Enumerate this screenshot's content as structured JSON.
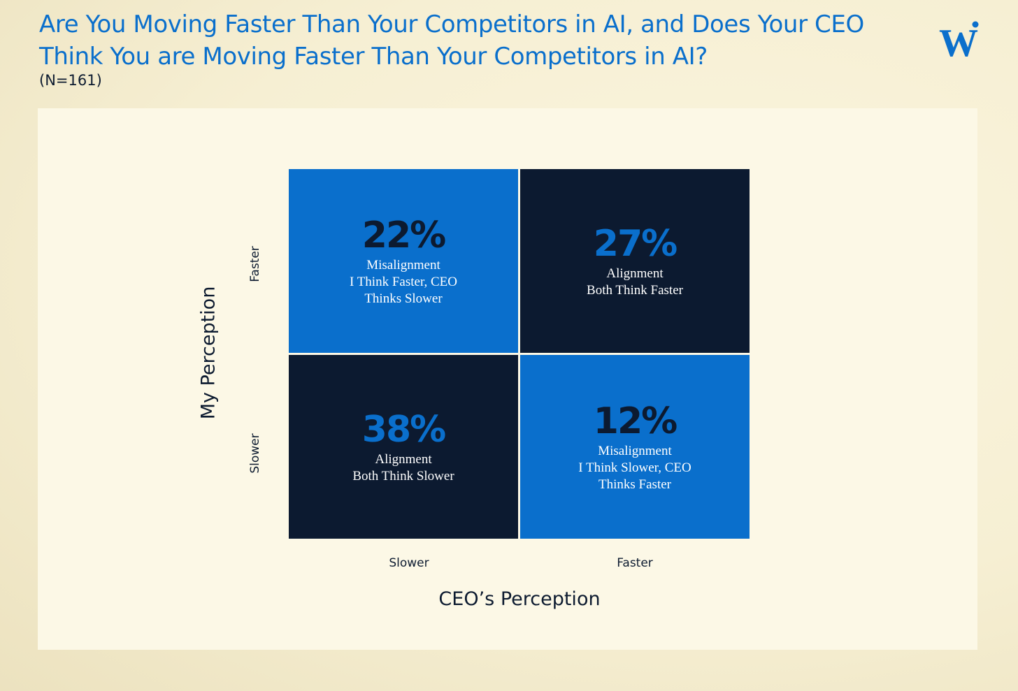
{
  "title": "Are You Moving Faster Than Your Competitors in AI, and Does Your CEO Think You are Moving Faster Than Your Competitors in AI?",
  "subtitle": "(N=161)",
  "colors": {
    "accent_blue": "#0a6fcc",
    "navy": "#0c1a30"
  },
  "logo": {
    "icon": "w-logo-icon"
  },
  "chart_data": {
    "type": "heatmap",
    "x_axis": {
      "title": "CEO’s Perception",
      "categories": [
        "Slower",
        "Faster"
      ]
    },
    "y_axis": {
      "title": "My Perception",
      "categories": [
        "Slower",
        "Faster"
      ]
    },
    "cells": [
      {
        "x": "Slower",
        "y": "Faster",
        "value": 22,
        "value_label": "22%",
        "lines": [
          "Misalignment",
          "I Think Faster, CEO",
          "Thinks Slower"
        ],
        "color": "#0a6fcc"
      },
      {
        "x": "Faster",
        "y": "Faster",
        "value": 27,
        "value_label": "27%",
        "lines": [
          "Alignment",
          "Both Think Faster"
        ],
        "color": "#0c1a30"
      },
      {
        "x": "Slower",
        "y": "Slower",
        "value": 38,
        "value_label": "38%",
        "lines": [
          "Alignment",
          "Both Think Slower"
        ],
        "color": "#0c1a30"
      },
      {
        "x": "Faster",
        "y": "Slower",
        "value": 12,
        "value_label": "12%",
        "lines": [
          "Misalignment",
          "I Think Slower, CEO",
          "Thinks Faster"
        ],
        "color": "#0a6fcc"
      }
    ]
  }
}
